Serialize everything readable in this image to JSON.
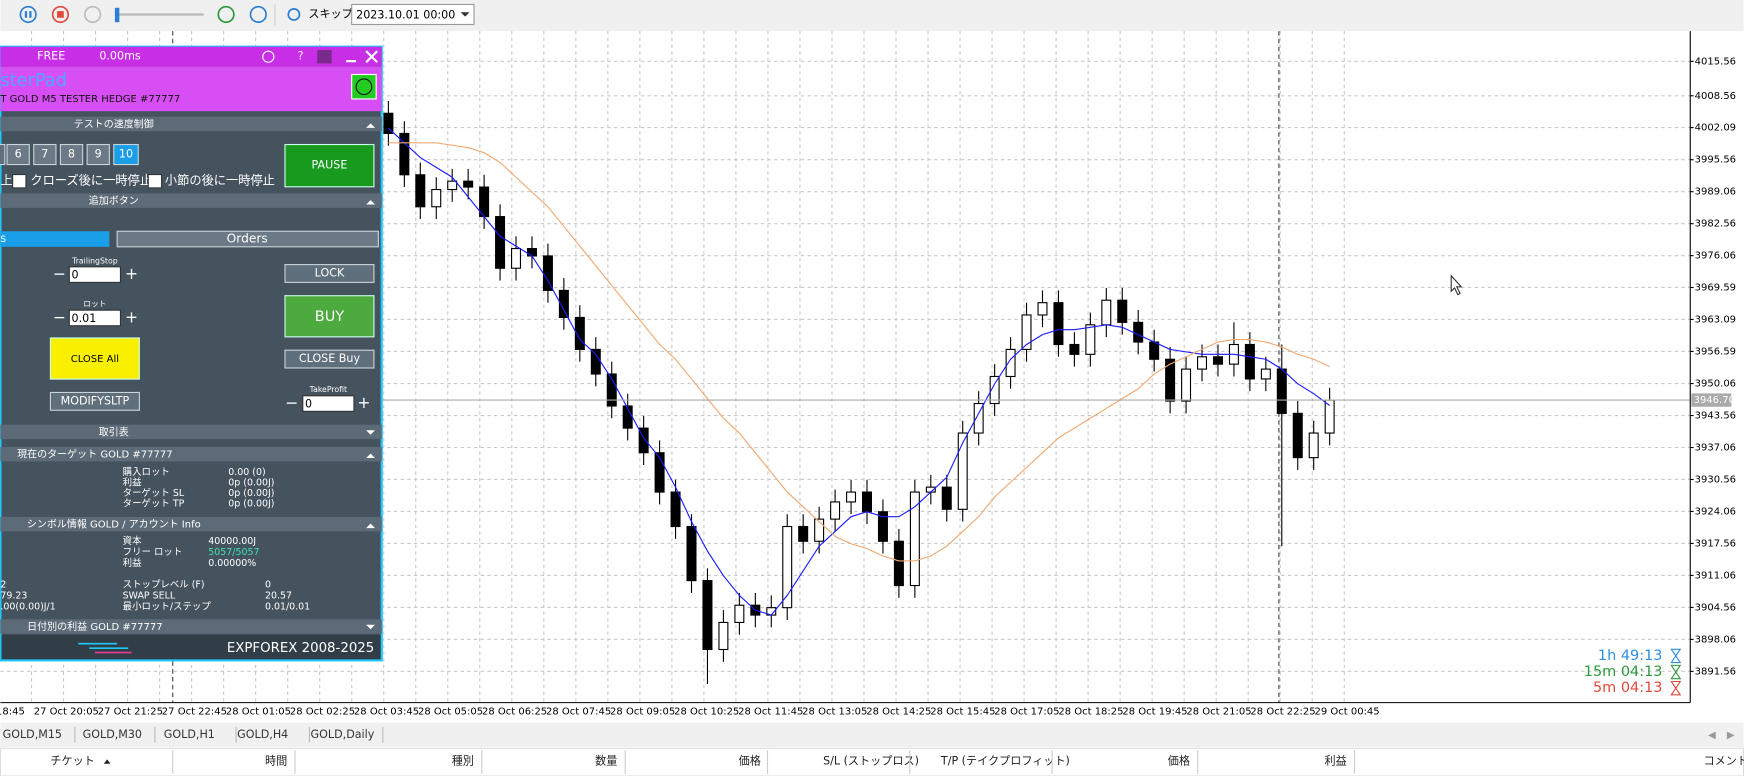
{
  "toolbar": {
    "skip": "スキップ",
    "date": "2023.10.01 00:00"
  },
  "chart_data": {
    "type": "candlestick",
    "open": [
      4005,
      4000.9,
      3992.5,
      3986,
      3989.5,
      3991.2,
      3990,
      3984,
      3973.5,
      3977.5,
      3976,
      3969,
      3963.5,
      3957,
      3952,
      3945.5,
      3941,
      3936,
      3928,
      3921,
      3910,
      3896,
      3901.5,
      3905,
      3903,
      3904.5,
      3921,
      3918,
      3922.5,
      3926,
      3928,
      3924,
      3918,
      3909,
      3928,
      3929,
      3924.5,
      3940,
      3946,
      3951.5,
      3957,
      3964,
      3966.5,
      3958,
      3956,
      3962,
      3967,
      3962.5,
      3958.5,
      3955,
      3946.5,
      3953,
      3955.5,
      3954,
      3958,
      3951,
      3953,
      3944,
      3935,
      3940
    ],
    "high": [
      4007.5,
      4003.4,
      3995,
      3992,
      3993.7,
      3993.7,
      3992.5,
      3986.5,
      3980,
      3980,
      3978.5,
      3971.5,
      3966,
      3959.5,
      3954.5,
      3948,
      3943.5,
      3938.5,
      3930.5,
      3923.5,
      3912.5,
      3904,
      3907.5,
      3907.5,
      3907,
      3923.5,
      3923.5,
      3925,
      3928.5,
      3930.5,
      3930.5,
      3926.5,
      3920.5,
      3930.5,
      3931.5,
      3931.5,
      3942.5,
      3948.5,
      3954,
      3959.5,
      3966.5,
      3969,
      3969,
      3960.5,
      3964.5,
      3969.5,
      3969.5,
      3965,
      3961,
      3957.5,
      3955.5,
      3958,
      3958,
      3962.5,
      3960.5,
      3955.5,
      3958,
      3946.5,
      3942.5,
      3949.2
    ],
    "low": [
      3998.4,
      3990,
      3983.5,
      3983.5,
      3987,
      3987.5,
      3981.5,
      3971,
      3971,
      3973.5,
      3966.5,
      3961,
      3954.5,
      3949.5,
      3943,
      3938.5,
      3933.5,
      3925.5,
      3918.5,
      3907.5,
      3889,
      3893.5,
      3899,
      3900.5,
      3900.5,
      3902,
      3915.5,
      3915.5,
      3920,
      3923.5,
      3921.5,
      3915.5,
      3906.5,
      3906.5,
      3925.5,
      3922,
      3922,
      3937.5,
      3943.5,
      3949,
      3954.5,
      3961.5,
      3955.5,
      3953.5,
      3953.5,
      3959.5,
      3960,
      3956,
      3952.5,
      3944,
      3944,
      3950.5,
      3951.5,
      3951.5,
      3948.5,
      3948.5,
      3917,
      3932.5,
      3932.5,
      3937.5
    ],
    "close": [
      4000.9,
      3992.5,
      3986,
      3989.5,
      3991.2,
      3990,
      3984,
      3973.5,
      3977.5,
      3976,
      3969,
      3963.5,
      3957,
      3952,
      3945.5,
      3941,
      3936,
      3928,
      3921,
      3910,
      3896,
      3901.5,
      3905,
      3903,
      3904.5,
      3921,
      3918,
      3922.5,
      3926,
      3928,
      3924,
      3918,
      3909,
      3928,
      3929,
      3924.5,
      3940,
      3946,
      3951.5,
      3957,
      3964,
      3966.5,
      3958,
      3956,
      3962,
      3967,
      3962.5,
      3958.5,
      3955,
      3946.5,
      3953,
      3955.5,
      3954,
      3958,
      3951,
      3953,
      3944,
      3935,
      3940,
      3946.7
    ],
    "ma_lines": [
      {
        "color": "#1a1aff",
        "values": [
          4002,
          3999,
          3996,
          3994,
          3992,
          3988,
          3984,
          3980,
          3978,
          3976,
          3971,
          3965,
          3959,
          3956,
          3951,
          3945,
          3939,
          3935,
          3929,
          3922,
          3916,
          3911,
          3907,
          3904,
          3903,
          3907,
          3912,
          3917,
          3920,
          3923,
          3924,
          3923,
          3923,
          3925,
          3928,
          3931,
          3938,
          3944,
          3950,
          3955,
          3958,
          3960,
          3961,
          3961,
          3961.5,
          3962,
          3961.5,
          3960,
          3958.5,
          3957,
          3956.5,
          3956,
          3956,
          3956,
          3955.5,
          3955,
          3953,
          3950,
          3948,
          3945.6
        ]
      },
      {
        "color": "#f0a870",
        "values": [
          3999,
          3999,
          3999,
          3999,
          3998.5,
          3998,
          3997,
          3995,
          3992,
          3989,
          3986,
          3982,
          3978,
          3974,
          3970,
          3966,
          3962,
          3958,
          3955,
          3951,
          3947,
          3943,
          3940,
          3936,
          3932,
          3928,
          3925,
          3922,
          3919,
          3917.5,
          3916.5,
          3915,
          3914,
          3914,
          3915,
          3917,
          3920,
          3923,
          3927,
          3930,
          3933,
          3936,
          3939,
          3941,
          3943,
          3945,
          3947,
          3949,
          3952,
          3954,
          3955.5,
          3957,
          3958.5,
          3959,
          3959,
          3958.5,
          3957.5,
          3956,
          3955,
          3953.5
        ]
      }
    ],
    "ylim": [
      3885.2,
      4021.7
    ],
    "yticks": [
      4015.56,
      4008.56,
      4002.09,
      3995.56,
      3989.06,
      3982.56,
      3976.06,
      3969.59,
      3963.09,
      3956.59,
      3950.06,
      3943.56,
      3937.06,
      3930.56,
      3924.06,
      3917.56,
      3911.06,
      3904.56,
      3898.06,
      3891.56
    ],
    "current_price": {
      "value": 3946.7,
      "label": "3946.70"
    },
    "x_labels": [
      "18:45",
      "27 Oct 20:05",
      "27 Oct 21:25",
      "27 Oct 22:45",
      "28 Oct 01:05",
      "28 Oct 02:25",
      "28 Oct 03:45",
      "28 Oct 05:05",
      "28 Oct 06:25",
      "28 Oct 07:45",
      "28 Oct 09:05",
      "28 Oct 10:25",
      "28 Oct 11:45",
      "28 Oct 13:05",
      "28 Oct 14:25",
      "28 Oct 15:45",
      "28 Oct 17:05",
      "28 Oct 18:25",
      "28 Oct 19:45",
      "28 Oct 21:05",
      "28 Oct 22:25",
      "29 Oct 00:45"
    ],
    "grid": true,
    "timers": [
      {
        "text": "1h  49:13",
        "color": "#2e8fe0"
      },
      {
        "text": "15m  04:13",
        "color": "#2a9a3a"
      },
      {
        "text": "5m  04:13",
        "color": "#e04a3a"
      }
    ]
  },
  "panel": {
    "status": "FREE",
    "latency": "0.00ms",
    "help": "?",
    "title": "sterPad",
    "account": "T  GOLD M5 TESTER HEDGE  #77777",
    "speed_section": "テストの速度制御",
    "speeds": [
      "6",
      "7",
      "8",
      "9",
      "10"
    ],
    "pause": "PAUSE",
    "checks": [
      "上",
      "クローズ後に一時停止",
      "小節の後に一時停止"
    ],
    "extra_section": "追加ボタン",
    "tabs": [
      "s",
      "Orders"
    ],
    "trailing_label": "TrailingStop",
    "trailing_value": "0",
    "lock": "LOCK",
    "lot_label": "ロット",
    "lot_value": "0.01",
    "buy": "BUY",
    "close_all": "CLOSE All",
    "close_buy": "CLOSE Buy",
    "modify": "MODIFYSLTP",
    "tp_label": "TakeProfit",
    "tp_value": "0",
    "trade_section": "取引表",
    "target_section": "現在のターゲット GOLD  #77777",
    "target_rows": [
      [
        "購入ロット",
        "0.00 (0)"
      ],
      [
        "利益",
        "0p (0.00J)"
      ],
      [
        "ターゲット SL",
        "0p (0.00J)"
      ],
      [
        "ターゲット TP",
        "0p (0.00J)"
      ]
    ],
    "symbol_section": "シンボル情報 GOLD / アカウント Info",
    "symbol_rows": [
      [
        "資本",
        "40000.00J"
      ],
      [
        "フリー ロット",
        "5057/5057"
      ],
      [
        "利益",
        "0.00000%"
      ],
      [
        "ストップレベル (F)",
        "0"
      ],
      [
        "SWAP SELL",
        "20.57"
      ],
      [
        "最小ロット/ステップ",
        "0.01/0.01"
      ]
    ],
    "symbol_left": [
      "2",
      "79.23",
      ".00(0.00)J/1"
    ],
    "daily_section": "日付別の利益 GOLD  #77777",
    "footer": "EXPFOREX 2008-2025"
  },
  "chart_tabs": [
    "GOLD,M15",
    "GOLD,M30",
    "GOLD,H1",
    "GOLD,H4",
    "GOLD,Daily"
  ],
  "columns": [
    "チケット",
    "時間",
    "種別",
    "数量",
    "価格",
    "S/L (ストップロス)",
    "T/P (テイクプロフィット)",
    "価格",
    "利益",
    "コメント"
  ]
}
